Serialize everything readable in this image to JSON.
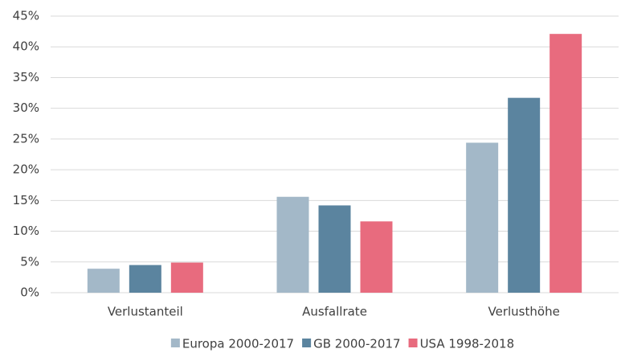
{
  "chart_data": {
    "type": "bar",
    "categories": [
      "Verlustanteil",
      "Ausfallrate",
      "Verlusthöhe"
    ],
    "series": [
      {
        "name": "Europa 2000-2017",
        "color": "#a3b8c8",
        "values": [
          3.9,
          15.6,
          24.4
        ]
      },
      {
        "name": "GB 2000-2017",
        "color": "#5b849f",
        "values": [
          4.5,
          14.2,
          31.7
        ]
      },
      {
        "name": "USA 1998-2018",
        "color": "#e86b7e",
        "values": [
          4.9,
          11.6,
          42.1
        ]
      }
    ],
    "ylim": [
      0,
      45
    ],
    "yticks": [
      {
        "value": 0,
        "label": "0%"
      },
      {
        "value": 5,
        "label": "5%"
      },
      {
        "value": 10,
        "label": "10%"
      },
      {
        "value": 15,
        "label": "15%"
      },
      {
        "value": 20,
        "label": "20%"
      },
      {
        "value": 25,
        "label": "25%"
      },
      {
        "value": 30,
        "label": "30%"
      },
      {
        "value": 35,
        "label": "35%"
      },
      {
        "value": 40,
        "label": "40%"
      },
      {
        "value": 45,
        "label": "45%"
      }
    ],
    "grid": true,
    "legend": "bottom"
  }
}
